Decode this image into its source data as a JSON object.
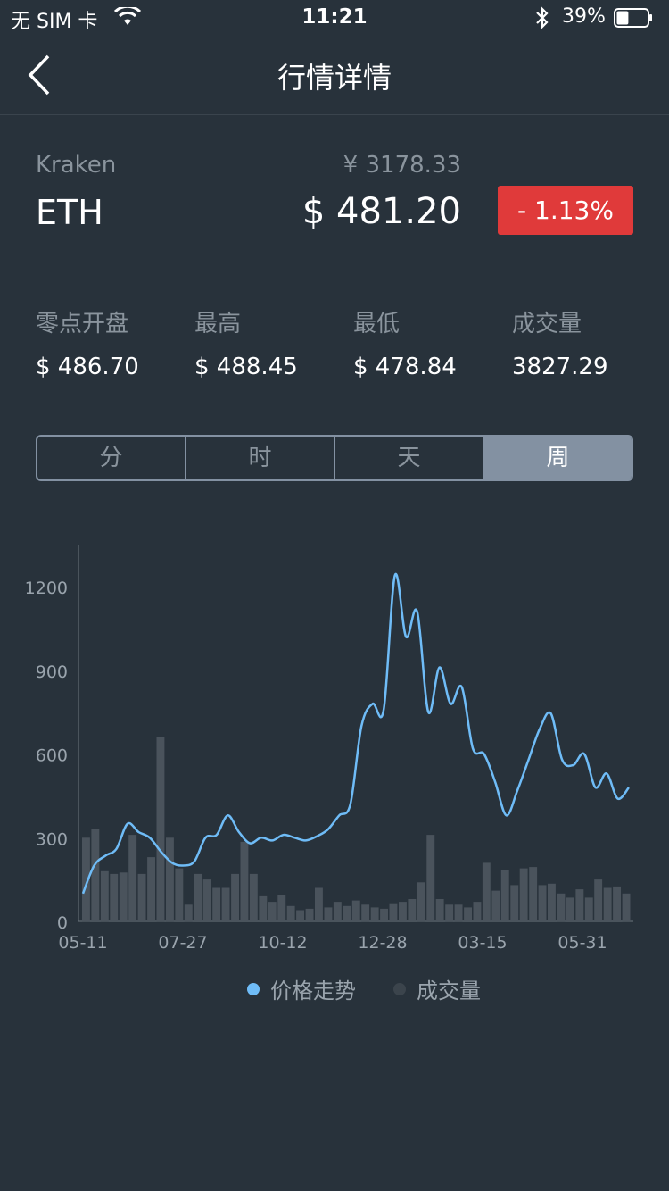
{
  "status_bar": {
    "carrier": "无 SIM 卡",
    "time": "11:21",
    "battery": "39%",
    "battery_level": 0.39
  },
  "nav": {
    "title": "行情详情",
    "back_icon": "chevron-left-icon"
  },
  "ticker": {
    "exchange": "Kraken",
    "symbol": "ETH",
    "price_cny": "¥  3178.33",
    "price_usd": "$ 481.20",
    "change": "- 1.13%",
    "change_color": "#e03a3a"
  },
  "stats": [
    {
      "label": "零点开盘",
      "value": "$ 486.70"
    },
    {
      "label": "最高",
      "value": "$ 488.45"
    },
    {
      "label": "最低",
      "value": "$ 478.84"
    },
    {
      "label": "成交量",
      "value": "3827.29"
    }
  ],
  "tabs": [
    {
      "label": "分",
      "active": false
    },
    {
      "label": "时",
      "active": false
    },
    {
      "label": "天",
      "active": false
    },
    {
      "label": "周",
      "active": true
    }
  ],
  "legend": {
    "price": "价格走势",
    "volume": "成交量"
  },
  "chart_data": {
    "type": "line",
    "x_tick_labels": [
      "05-11",
      "07-27",
      "10-12",
      "12-28",
      "03-15",
      "05-31"
    ],
    "y_tick_labels": [
      "0",
      "300",
      "600",
      "900",
      "1200"
    ],
    "ylim": [
      0,
      1300
    ],
    "price_color": "#6fbcf7",
    "volume_color": "#4a535c",
    "series": [
      {
        "kind": "line",
        "values": [
          100,
          200,
          235,
          260,
          350,
          320,
          300,
          250,
          210,
          200,
          215,
          300,
          310,
          380,
          320,
          280,
          300,
          290,
          310,
          300,
          290,
          305,
          330,
          380,
          420,
          700,
          780,
          760,
          1240,
          1020,
          1110,
          750,
          910,
          780,
          840,
          620,
          600,
          500,
          380,
          470,
          580,
          690,
          745,
          580,
          560,
          600,
          480,
          530,
          440,
          480
        ]
      },
      {
        "kind": "bar",
        "values": [
          300,
          330,
          180,
          170,
          175,
          310,
          170,
          230,
          660,
          300,
          190,
          60,
          170,
          150,
          120,
          120,
          170,
          285,
          170,
          90,
          70,
          95,
          55,
          40,
          45,
          120,
          50,
          70,
          55,
          75,
          60,
          50,
          45,
          65,
          70,
          80,
          140,
          310,
          80,
          60,
          60,
          50,
          70,
          210,
          110,
          185,
          130,
          190,
          195,
          130,
          135,
          100,
          85,
          115,
          85,
          150,
          120,
          125,
          100
        ]
      }
    ]
  }
}
